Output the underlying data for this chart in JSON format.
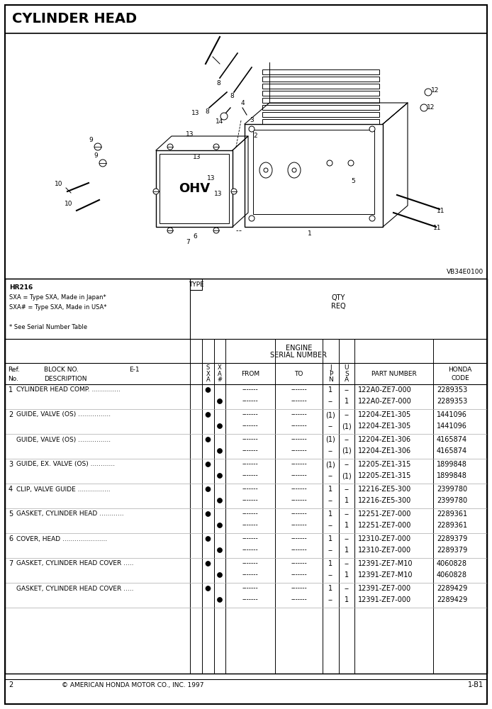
{
  "title": "CYLINDER HEAD",
  "page_num": "2",
  "copyright": "© AMERICAN HONDA MOTOR CO., INC. 1997",
  "page_code": "1-B1",
  "vb_code": "VB34E0100",
  "header_info_lines": [
    "HR216",
    "SXA = Type SXA, Made in Japan*",
    "SXA# = Type SXA, Made in USA*",
    "",
    "* See Serial Number Table"
  ],
  "parts": [
    {
      "ref": "1",
      "description": "CYLINDER HEAD COMP. ..............",
      "rows": [
        {
          "sxa": true,
          "xa": false,
          "jpn": "1",
          "usa": "--",
          "part": "122A0-ZE7-000",
          "code": "2289353"
        },
        {
          "sxa": false,
          "xa": true,
          "jpn": "--",
          "usa": "1",
          "part": "122A0-ZE7-000",
          "code": "2289353"
        }
      ]
    },
    {
      "ref": "2",
      "description": "GUIDE, VALVE (OS) ................",
      "rows": [
        {
          "sxa": true,
          "xa": false,
          "jpn": "(1)",
          "usa": "--",
          "part": "12204-ZE1-305",
          "code": "1441096"
        },
        {
          "sxa": false,
          "xa": true,
          "jpn": "--",
          "usa": "(1)",
          "part": "12204-ZE1-305",
          "code": "1441096"
        }
      ]
    },
    {
      "ref": "",
      "description": "GUIDE, VALVE (OS) ................",
      "rows": [
        {
          "sxa": true,
          "xa": false,
          "jpn": "(1)",
          "usa": "--",
          "part": "12204-ZE1-306",
          "code": "4165874"
        },
        {
          "sxa": false,
          "xa": true,
          "jpn": "--",
          "usa": "(1)",
          "part": "12204-ZE1-306",
          "code": "4165874"
        }
      ]
    },
    {
      "ref": "3",
      "description": "GUIDE, EX. VALVE (OS) ............",
      "rows": [
        {
          "sxa": true,
          "xa": false,
          "jpn": "(1)",
          "usa": "--",
          "part": "12205-ZE1-315",
          "code": "1899848"
        },
        {
          "sxa": false,
          "xa": true,
          "jpn": "--",
          "usa": "(1)",
          "part": "12205-ZE1-315",
          "code": "1899848"
        }
      ]
    },
    {
      "ref": "4",
      "description": "CLIP, VALVE GUIDE ................",
      "rows": [
        {
          "sxa": true,
          "xa": false,
          "jpn": "1",
          "usa": "--",
          "part": "12216-ZE5-300",
          "code": "2399780"
        },
        {
          "sxa": false,
          "xa": true,
          "jpn": "--",
          "usa": "1",
          "part": "12216-ZE5-300",
          "code": "2399780"
        }
      ]
    },
    {
      "ref": "5",
      "description": "GASKET, CYLINDER HEAD ............",
      "rows": [
        {
          "sxa": true,
          "xa": false,
          "jpn": "1",
          "usa": "--",
          "part": "12251-ZE7-000",
          "code": "2289361"
        },
        {
          "sxa": false,
          "xa": true,
          "jpn": "--",
          "usa": "1",
          "part": "12251-ZE7-000",
          "code": "2289361"
        }
      ]
    },
    {
      "ref": "6",
      "description": "COVER, HEAD ......................",
      "rows": [
        {
          "sxa": true,
          "xa": false,
          "jpn": "1",
          "usa": "--",
          "part": "12310-ZE7-000",
          "code": "2289379"
        },
        {
          "sxa": false,
          "xa": true,
          "jpn": "--",
          "usa": "1",
          "part": "12310-ZE7-000",
          "code": "2289379"
        }
      ]
    },
    {
      "ref": "7",
      "description": "GASKET, CYLINDER HEAD COVER .....",
      "rows": [
        {
          "sxa": true,
          "xa": false,
          "jpn": "1",
          "usa": "--",
          "part": "12391-ZE7-M10",
          "code": "4060828"
        },
        {
          "sxa": false,
          "xa": true,
          "jpn": "--",
          "usa": "1",
          "part": "12391-ZE7-M10",
          "code": "4060828"
        }
      ]
    },
    {
      "ref": "",
      "description": "GASKET, CYLINDER HEAD COVER .....",
      "rows": [
        {
          "sxa": true,
          "xa": false,
          "jpn": "1",
          "usa": "--",
          "part": "12391-ZE7-000",
          "code": "2289429"
        },
        {
          "sxa": false,
          "xa": true,
          "jpn": "--",
          "usa": "1",
          "part": "12391-ZE7-000",
          "code": "2289429"
        }
      ]
    }
  ]
}
